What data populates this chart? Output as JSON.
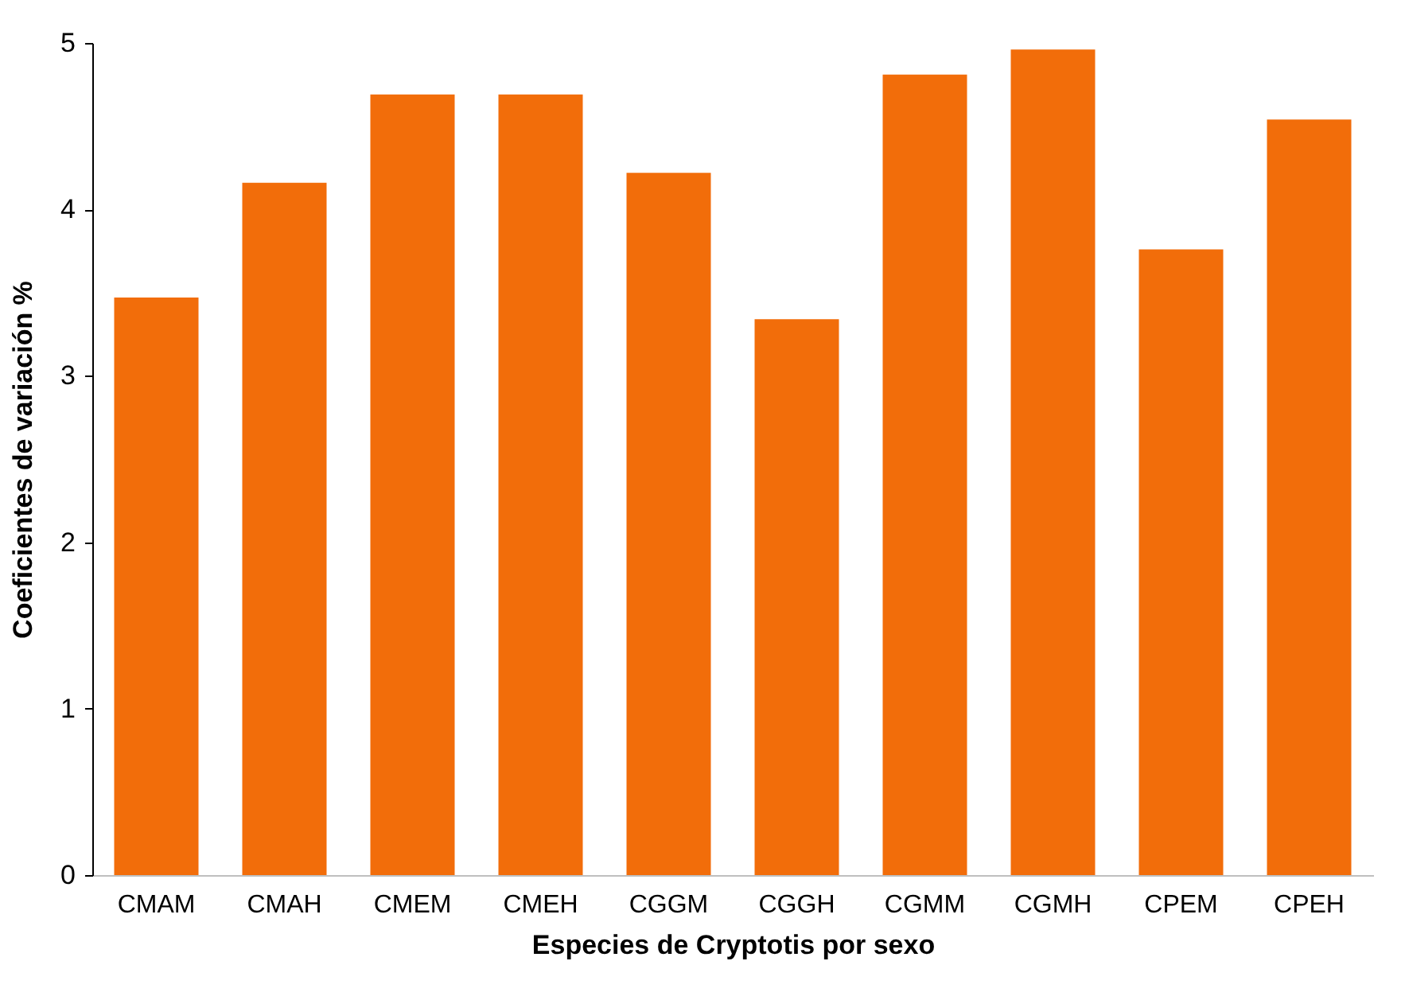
{
  "chart_data": {
    "type": "bar",
    "xlabel": "Especies de Cryptotis por sexo",
    "ylabel": "Coeficientes de variación %",
    "categories": [
      "CMAM",
      "CMAH",
      "CMEM",
      "CMEH",
      "CGGM",
      "CGGH",
      "CGMM",
      "CGMH",
      "CPEM",
      "CPEH"
    ],
    "values": [
      3.47,
      4.16,
      4.69,
      4.69,
      4.22,
      3.34,
      4.81,
      4.96,
      3.76,
      4.54
    ],
    "color": "#f26d0a",
    "ylim": [
      0,
      5
    ],
    "yticks": [
      0,
      1,
      2,
      3,
      4,
      5
    ],
    "grid": false
  }
}
